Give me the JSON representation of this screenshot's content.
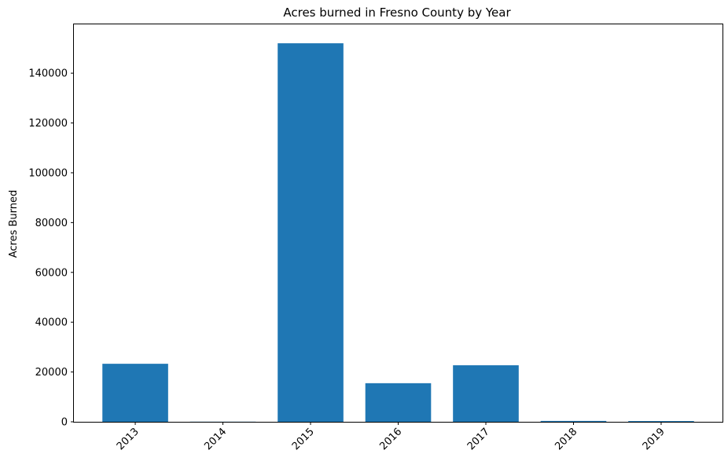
{
  "chart_data": {
    "type": "bar",
    "title": "Acres burned in Fresno County by Year",
    "xlabel": "",
    "ylabel": "Acres Burned",
    "categories": [
      "2013",
      "2014",
      "2015",
      "2016",
      "2017",
      "2018",
      "2019"
    ],
    "values": [
      23300,
      50,
      152000,
      15500,
      22700,
      350,
      300
    ],
    "ylim": [
      0,
      159600
    ],
    "yticks": [
      0,
      20000,
      40000,
      60000,
      80000,
      100000,
      120000,
      140000
    ],
    "yticklabels": [
      "0",
      "20000",
      "40000",
      "60000",
      "80000",
      "100000",
      "120000",
      "140000"
    ],
    "grid": false,
    "bar_color": "#1f77b4"
  }
}
